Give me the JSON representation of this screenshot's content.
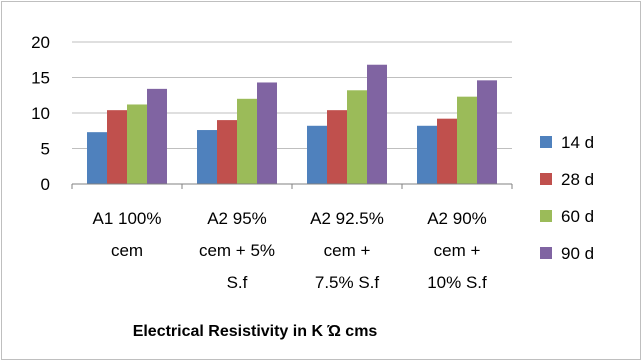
{
  "chart_data": {
    "type": "bar",
    "title": "",
    "xlabel": "Electrical Resistivity in K Ώ cms",
    "ylabel": "",
    "ylim": [
      0,
      20
    ],
    "yticks": [
      0,
      5,
      10,
      15,
      20
    ],
    "grid": "horizontal",
    "legend_position": "right",
    "categories": [
      [
        "A1 100%",
        "cem"
      ],
      [
        "A2 95%",
        "cem + 5%",
        "S.f"
      ],
      [
        "A2 92.5%",
        "cem +",
        "7.5% S.f"
      ],
      [
        "A2 90%",
        "cem +",
        "10% S.f"
      ]
    ],
    "series": [
      {
        "name": "14 d",
        "color": "#4f81bd",
        "values": [
          7.3,
          7.6,
          8.2,
          8.2
        ]
      },
      {
        "name": "28 d",
        "color": "#c0504d",
        "values": [
          10.4,
          9.0,
          10.4,
          9.2
        ]
      },
      {
        "name": "60 d",
        "color": "#9bbb59",
        "values": [
          11.2,
          12.0,
          13.2,
          12.3
        ]
      },
      {
        "name": "90 d",
        "color": "#8064a2",
        "values": [
          13.4,
          14.3,
          16.8,
          14.6
        ]
      }
    ]
  }
}
